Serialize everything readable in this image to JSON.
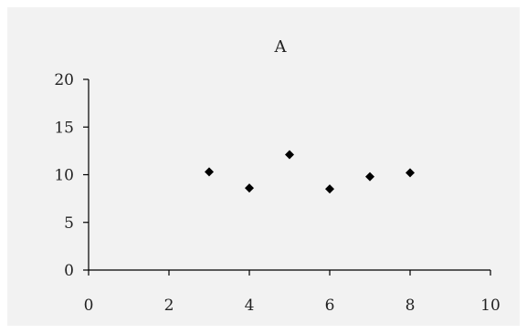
{
  "chart_data": {
    "type": "scatter",
    "title": "A",
    "xlabel": "",
    "ylabel": "",
    "xlim": [
      0,
      10
    ],
    "ylim": [
      0,
      20
    ],
    "xticks": [
      0,
      2,
      4,
      6,
      8,
      10
    ],
    "yticks": [
      0,
      5,
      10,
      15,
      20
    ],
    "grid": false,
    "marker": "diamond",
    "series": [
      {
        "x": [
          3,
          4,
          5,
          6,
          7,
          8
        ],
        "y": [
          10.3,
          8.6,
          12.1,
          8.5,
          9.8,
          10.2
        ]
      }
    ]
  },
  "colors": {
    "marker": "#000000",
    "background": "#f2f2f2",
    "axis": "#000000"
  }
}
